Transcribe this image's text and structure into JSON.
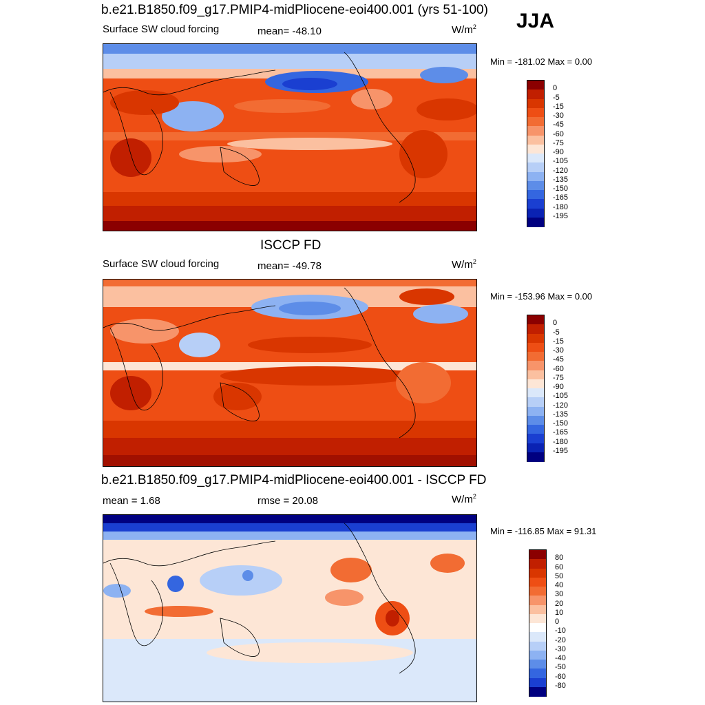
{
  "season": "JJA",
  "panels": [
    {
      "title": "b.e21.B1850.f09_g17.PMIP4-midPliocene-eoi400.001 (yrs 51-100)",
      "left_label": "Surface SW cloud forcing",
      "center_label": "mean= -48.10",
      "units_base": "W/m",
      "units_sup": "2",
      "minmax": "Min = -181.02 Max =   0.00",
      "colorbar": {
        "levels": [
          "0",
          "-5",
          "-15",
          "-30",
          "-45",
          "-60",
          "-75",
          "-90",
          "-105",
          "-120",
          "-135",
          "-150",
          "-165",
          "-180",
          "-195"
        ],
        "colors": [
          "#8b0000",
          "#c11f00",
          "#d93600",
          "#ee4e14",
          "#f26c33",
          "#f7946a",
          "#fbc0a0",
          "#fde6d6",
          "#dbe8fa",
          "#b7cff7",
          "#8db2f2",
          "#5d8de8",
          "#3466e0",
          "#1a3fd1",
          "#0a22b3",
          "#000080"
        ]
      }
    },
    {
      "title": "ISCCP FD",
      "left_label": "Surface SW cloud forcing",
      "center_label": "mean= -49.78",
      "units_base": "W/m",
      "units_sup": "2",
      "minmax": "Min = -153.96 Max =   0.00",
      "colorbar": {
        "levels": [
          "0",
          "-5",
          "-15",
          "-30",
          "-45",
          "-60",
          "-75",
          "-90",
          "-105",
          "-120",
          "-135",
          "-150",
          "-165",
          "-180",
          "-195"
        ],
        "colors": [
          "#8b0000",
          "#c11f00",
          "#d93600",
          "#ee4e14",
          "#f26c33",
          "#f7946a",
          "#fbc0a0",
          "#fde6d6",
          "#dbe8fa",
          "#b7cff7",
          "#8db2f2",
          "#5d8de8",
          "#3466e0",
          "#1a3fd1",
          "#0a22b3",
          "#000080"
        ]
      }
    },
    {
      "title": "b.e21.B1850.f09_g17.PMIP4-midPliocene-eoi400.001 - ISCCP FD",
      "left_label": "mean =   1.68",
      "center_label": "rmse =  20.08",
      "units_base": "W/m",
      "units_sup": "2",
      "minmax": "Min = -116.85 Max =  91.31",
      "colorbar": {
        "levels": [
          "80",
          "60",
          "50",
          "40",
          "30",
          "20",
          "10",
          "0",
          "-10",
          "-20",
          "-30",
          "-40",
          "-50",
          "-60",
          "-80"
        ],
        "colors": [
          "#8b0000",
          "#c11f00",
          "#d93600",
          "#ee4e14",
          "#f26c33",
          "#f7946a",
          "#fbc0a0",
          "#fde6d6",
          "#ffffff",
          "#dbe8fa",
          "#b7cff7",
          "#8db2f2",
          "#5d8de8",
          "#3466e0",
          "#1a3fd1",
          "#000080"
        ]
      }
    }
  ]
}
